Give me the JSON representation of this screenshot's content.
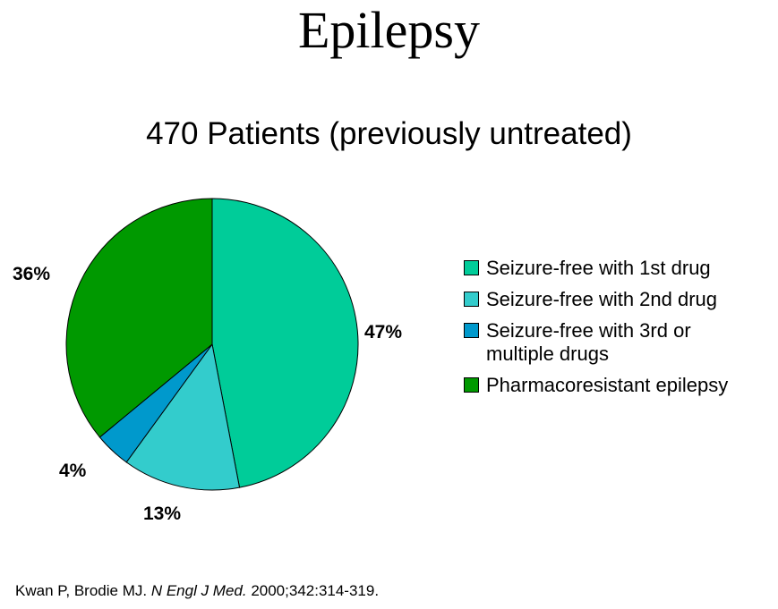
{
  "title": "Epilepsy",
  "subtitle": "470 Patients (previously untreated)",
  "chart_data": {
    "type": "pie",
    "title": "470 Patients (previously untreated)",
    "categories": [
      "Seizure-free with 1st drug",
      "Seizure-free with 2nd drug",
      "Seizure-free with 3rd or multiple drugs",
      "Pharmacoresistant epilepsy"
    ],
    "values": [
      47,
      13,
      4,
      36
    ],
    "labels": [
      "47%",
      "13%",
      "4%",
      "36%"
    ],
    "colors": [
      "#00CC99",
      "#33CCCC",
      "#0099CC",
      "#009900"
    ],
    "legend_position": "right"
  },
  "legend": [
    {
      "label": "Seizure-free with 1st drug",
      "color": "#00CC99"
    },
    {
      "label": "Seizure-free with 2nd drug",
      "color": "#33CCCC"
    },
    {
      "label": "Seizure-free with 3rd or multiple drugs",
      "color": "#0099CC"
    },
    {
      "label": "Pharmacoresistant epilepsy",
      "color": "#009900"
    }
  ],
  "footer": {
    "authors": "Kwan P, Brodie MJ. ",
    "journal": "N Engl J Med.",
    "details": " 2000;342:314-319."
  }
}
